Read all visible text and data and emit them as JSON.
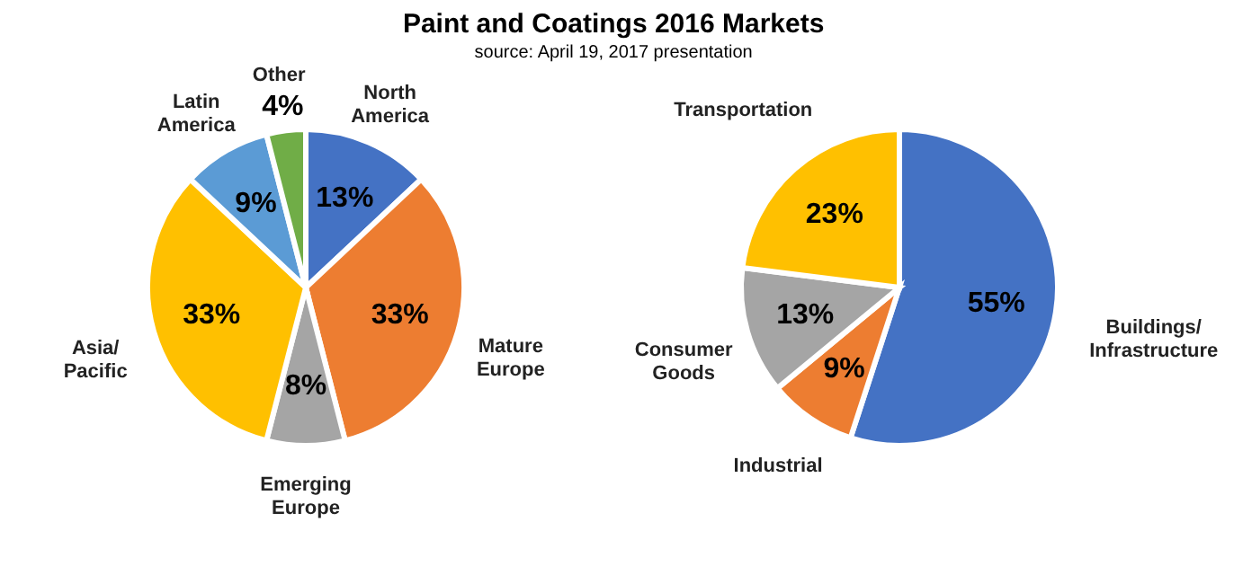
{
  "chart_data": [
    {
      "type": "pie",
      "title": "Paint and Coatings 2016 Markets",
      "subtitle": "source: April 19, 2017 presentation",
      "categories": [
        "North America",
        "Mature Europe",
        "Emerging Europe",
        "Asia/Pacific",
        "Latin America",
        "Other"
      ],
      "values": [
        13,
        33,
        8,
        33,
        9,
        4
      ],
      "colors": [
        "#4472c4",
        "#ed7d31",
        "#a5a5a5",
        "#ffc000",
        "#5b9bd5",
        "#70ad47"
      ],
      "value_labels": [
        "13%",
        "33%",
        "8%",
        "33%",
        "9%",
        "4%"
      ],
      "legend": false
    },
    {
      "type": "pie",
      "categories": [
        "Buildings/Infrastructure",
        "Industrial",
        "Consumer Goods",
        "Transportation"
      ],
      "values": [
        55,
        9,
        13,
        23
      ],
      "colors": [
        "#4472c4",
        "#ed7d31",
        "#a5a5a5",
        "#ffc000"
      ],
      "value_labels": [
        "55%",
        "9%",
        "13%",
        "23%"
      ],
      "legend": false
    }
  ]
}
